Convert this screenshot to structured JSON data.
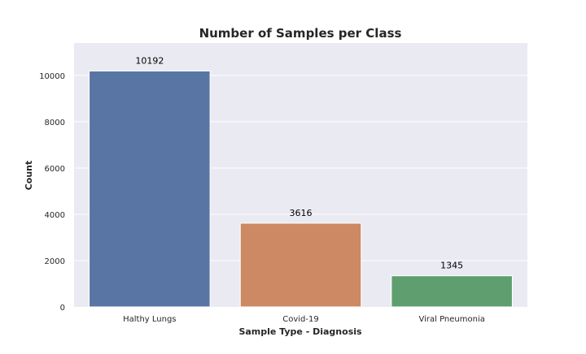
{
  "chart_data": {
    "type": "bar",
    "title": "Number of Samples per Class",
    "xlabel": "Sample Type - Diagnosis",
    "ylabel": "Count",
    "categories": [
      "Halthy Lungs",
      "Covid-19",
      "Viral Pneumonia"
    ],
    "values": [
      10192,
      3616,
      1345
    ],
    "data_labels": [
      "10192",
      "3616",
      "1345"
    ],
    "ylim": [
      0,
      11400
    ],
    "yticks": [
      0,
      2000,
      4000,
      6000,
      8000,
      10000
    ],
    "ytick_labels": [
      "0",
      "2000",
      "4000",
      "6000",
      "8000",
      "10000"
    ],
    "colors": [
      "#5975a4",
      "#cc8963",
      "#5f9e6e"
    ],
    "grid": true,
    "background": "#eaeaf2"
  }
}
